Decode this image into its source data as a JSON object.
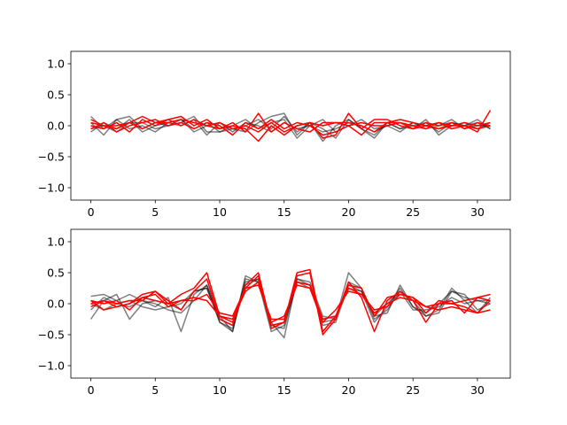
{
  "colors": {
    "gray_series": "#000000",
    "red_series": "#ff0000",
    "axes": "#000000",
    "background": "#ffffff"
  },
  "chart_data": [
    {
      "type": "line",
      "title": "",
      "xlabel": "",
      "ylabel": "",
      "xlim": [
        -1.55,
        32.55
      ],
      "ylim": [
        -1.2,
        1.2
      ],
      "grid": false,
      "x_ticks": [
        0,
        5,
        10,
        15,
        20,
        25,
        30
      ],
      "y_ticks": [
        -1.0,
        -0.5,
        0.0,
        0.5,
        1.0
      ],
      "x_tick_labels": [
        "0",
        "5",
        "10",
        "15",
        "20",
        "25",
        "30"
      ],
      "y_tick_labels": [
        "−1.0",
        "−0.5",
        "0.0",
        "0.5",
        "1.0"
      ],
      "x": [
        0,
        1,
        2,
        3,
        4,
        5,
        6,
        7,
        8,
        9,
        10,
        11,
        12,
        13,
        14,
        15,
        16,
        17,
        18,
        19,
        20,
        21,
        22,
        23,
        24,
        25,
        26,
        27,
        28,
        29,
        30,
        31
      ],
      "series": [
        {
          "group": "gray",
          "values": [
            0.15,
            -0.05,
            0.1,
            0.15,
            -0.05,
            0.05,
            0.0,
            0.05,
            0.15,
            -0.1,
            -0.1,
            -0.05,
            -0.1,
            0.05,
            0.15,
            0.2,
            -0.15,
            0.05,
            -0.25,
            0.0,
            0.1,
            -0.05,
            -0.15,
            0.05,
            -0.05,
            0.0,
            0.05,
            -0.1,
            0.05,
            0.0,
            0.05,
            -0.05
          ]
        },
        {
          "group": "gray",
          "values": [
            -0.1,
            0.05,
            -0.05,
            0.1,
            -0.1,
            0.0,
            0.05,
            0.1,
            -0.05,
            0.05,
            -0.1,
            0.0,
            0.1,
            -0.05,
            0.05,
            0.1,
            -0.2,
            0.0,
            -0.1,
            -0.05,
            0.05,
            0.0,
            -0.1,
            0.0,
            0.05,
            -0.05,
            0.1,
            -0.15,
            0.0,
            0.05,
            -0.05,
            0.05
          ]
        },
        {
          "group": "gray",
          "values": [
            0.05,
            -0.15,
            0.1,
            -0.05,
            0.0,
            -0.1,
            0.05,
            0.0,
            0.1,
            -0.15,
            0.05,
            -0.05,
            0.0,
            0.1,
            -0.05,
            0.15,
            -0.1,
            0.05,
            -0.05,
            -0.2,
            0.1,
            -0.05,
            -0.2,
            0.05,
            -0.05,
            0.05,
            -0.05,
            0.0,
            0.1,
            -0.05,
            0.0,
            0.0
          ]
        },
        {
          "group": "gray",
          "values": [
            -0.05,
            0.0,
            -0.1,
            0.05,
            0.05,
            -0.05,
            0.0,
            0.1,
            -0.1,
            0.0,
            0.05,
            -0.1,
            0.05,
            0.0,
            -0.1,
            0.05,
            -0.05,
            0.0,
            0.1,
            -0.1,
            0.0,
            0.1,
            -0.05,
            0.0,
            -0.1,
            0.05,
            0.0,
            -0.05,
            0.05,
            0.0,
            0.1,
            -0.05
          ]
        },
        {
          "group": "red",
          "values": [
            0.1,
            0.0,
            -0.05,
            0.05,
            0.15,
            0.05,
            0.1,
            0.15,
            0.0,
            0.1,
            -0.05,
            0.05,
            -0.1,
            0.2,
            -0.1,
            0.05,
            -0.05,
            -0.1,
            0.05,
            0.05,
            0.05,
            0.0,
            -0.1,
            0.05,
            0.1,
            0.05,
            0.0,
            -0.05,
            0.0,
            0.05,
            0.0,
            0.05
          ]
        },
        {
          "group": "red",
          "values": [
            -0.05,
            0.05,
            -0.1,
            0.0,
            0.05,
            0.1,
            0.0,
            0.05,
            -0.05,
            0.05,
            0.0,
            -0.15,
            0.05,
            -0.05,
            0.1,
            -0.05,
            0.05,
            0.0,
            -0.15,
            -0.1,
            0.0,
            -0.15,
            0.05,
            0.05,
            0.05,
            -0.05,
            0.05,
            0.0,
            0.05,
            -0.05,
            0.05,
            0.0
          ]
        },
        {
          "group": "red",
          "values": [
            0.0,
            -0.05,
            0.05,
            -0.1,
            0.1,
            0.0,
            0.1,
            0.0,
            0.1,
            0.0,
            0.05,
            -0.05,
            0.0,
            -0.1,
            0.05,
            -0.1,
            0.0,
            0.05,
            0.0,
            0.05,
            0.0,
            0.05,
            0.0,
            0.0,
            0.05,
            0.0,
            -0.05,
            0.05,
            0.0,
            0.0,
            -0.05,
            0.0
          ]
        },
        {
          "group": "red",
          "values": [
            0.05,
            0.0,
            0.0,
            0.05,
            -0.05,
            0.05,
            0.05,
            0.1,
            0.05,
            0.0,
            -0.05,
            0.0,
            -0.05,
            -0.25,
            0.0,
            -0.15,
            0.0,
            0.05,
            -0.2,
            -0.15,
            0.2,
            -0.05,
            0.1,
            0.1,
            0.0,
            -0.05,
            0.0,
            0.05,
            -0.05,
            0.0,
            -0.1,
            0.25
          ]
        }
      ]
    },
    {
      "type": "line",
      "title": "",
      "xlabel": "",
      "ylabel": "",
      "xlim": [
        -1.55,
        32.55
      ],
      "ylim": [
        -1.2,
        1.2
      ],
      "grid": false,
      "x_ticks": [
        0,
        5,
        10,
        15,
        20,
        25,
        30
      ],
      "y_ticks": [
        -1.0,
        -0.5,
        0.0,
        0.5,
        1.0
      ],
      "x_tick_labels": [
        "0",
        "5",
        "10",
        "15",
        "20",
        "25",
        "30"
      ],
      "y_tick_labels": [
        "−1.0",
        "−0.5",
        "0.0",
        "0.5",
        "1.0"
      ],
      "x": [
        0,
        1,
        2,
        3,
        4,
        5,
        6,
        7,
        8,
        9,
        10,
        11,
        12,
        13,
        14,
        15,
        16,
        17,
        18,
        19,
        20,
        21,
        22,
        23,
        24,
        25,
        26,
        27,
        28,
        29,
        30,
        31
      ],
      "series": [
        {
          "group": "gray",
          "values": [
            0.12,
            0.15,
            0.05,
            0.15,
            0.05,
            -0.05,
            0.1,
            -0.45,
            0.15,
            0.3,
            -0.2,
            -0.45,
            0.45,
            0.35,
            -0.3,
            -0.55,
            0.4,
            0.35,
            -0.2,
            -0.25,
            0.5,
            0.25,
            -0.2,
            -0.15,
            0.3,
            -0.05,
            -0.15,
            0.0,
            0.2,
            0.1,
            0.05,
            0.05
          ]
        },
        {
          "group": "gray",
          "values": [
            -0.25,
            0.05,
            0.15,
            -0.25,
            0.0,
            0.05,
            0.0,
            -0.1,
            0.2,
            0.25,
            -0.3,
            -0.4,
            0.3,
            0.4,
            -0.4,
            -0.3,
            0.35,
            0.3,
            -0.35,
            -0.3,
            0.3,
            0.2,
            -0.3,
            -0.05,
            0.25,
            -0.05,
            -0.2,
            -0.15,
            0.2,
            0.15,
            -0.1,
            0.0
          ]
        },
        {
          "group": "gray",
          "values": [
            0.0,
            -0.1,
            0.0,
            0.05,
            -0.05,
            -0.1,
            -0.05,
            0.0,
            0.2,
            0.25,
            -0.25,
            -0.35,
            0.35,
            0.4,
            -0.35,
            -0.4,
            0.35,
            0.25,
            -0.25,
            -0.2,
            0.25,
            0.2,
            -0.2,
            0.0,
            0.2,
            -0.1,
            -0.1,
            -0.05,
            0.1,
            0.0,
            0.05,
            0.0
          ]
        },
        {
          "group": "gray",
          "values": [
            -0.1,
            0.1,
            0.0,
            -0.05,
            0.05,
            0.0,
            -0.1,
            -0.15,
            0.05,
            0.3,
            -0.3,
            -0.45,
            0.4,
            0.35,
            -0.45,
            -0.35,
            0.4,
            0.3,
            -0.3,
            -0.25,
            0.35,
            0.25,
            -0.25,
            -0.1,
            0.2,
            0.05,
            -0.2,
            -0.1,
            0.25,
            0.05,
            -0.15,
            0.1
          ]
        },
        {
          "group": "red",
          "values": [
            0.05,
            -0.1,
            -0.05,
            0.0,
            0.15,
            0.2,
            0.0,
            0.15,
            0.25,
            0.5,
            -0.2,
            -0.3,
            0.25,
            0.45,
            -0.4,
            -0.3,
            0.45,
            0.5,
            -0.5,
            -0.25,
            0.35,
            0.1,
            -0.45,
            0.05,
            0.2,
            0.05,
            -0.3,
            0.0,
            0.05,
            -0.15,
            0.1,
            0.15
          ]
        },
        {
          "group": "red",
          "values": [
            -0.05,
            0.05,
            0.0,
            0.05,
            0.05,
            0.2,
            0.05,
            -0.1,
            0.2,
            0.4,
            -0.25,
            -0.35,
            0.3,
            0.5,
            -0.35,
            -0.3,
            0.5,
            0.55,
            -0.45,
            -0.2,
            0.3,
            0.25,
            -0.2,
            0.1,
            0.15,
            0.1,
            -0.15,
            0.05,
            0.0,
            -0.05,
            -0.15,
            0.05
          ]
        },
        {
          "group": "red",
          "values": [
            0.05,
            0.0,
            0.05,
            -0.1,
            0.1,
            0.15,
            -0.05,
            0.05,
            0.1,
            0.05,
            -0.2,
            -0.25,
            0.2,
            0.35,
            -0.3,
            -0.2,
            0.3,
            0.25,
            -0.3,
            -0.1,
            0.2,
            0.15,
            -0.15,
            0.0,
            0.1,
            0.05,
            -0.05,
            -0.1,
            -0.05,
            -0.1,
            -0.15,
            -0.1
          ]
        },
        {
          "group": "red",
          "values": [
            0.0,
            0.05,
            -0.05,
            0.0,
            0.1,
            0.05,
            0.0,
            0.05,
            0.05,
            0.15,
            -0.15,
            -0.2,
            0.25,
            0.3,
            -0.25,
            -0.25,
            0.35,
            0.3,
            -0.25,
            -0.2,
            0.25,
            0.15,
            -0.1,
            -0.05,
            0.15,
            0.1,
            -0.05,
            0.0,
            0.0,
            0.05,
            0.1,
            0.05
          ]
        }
      ]
    }
  ]
}
